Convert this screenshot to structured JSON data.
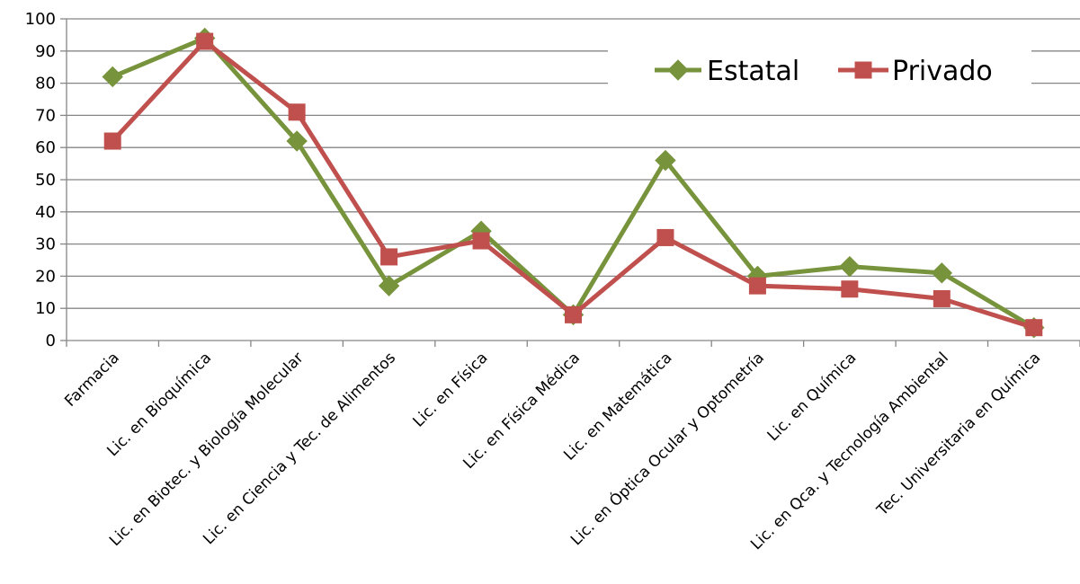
{
  "chart_data": {
    "type": "line",
    "categories": [
      "Farmacia",
      "Lic. en Bioquímica",
      "Lic. en Biotec. y Biología Molecular",
      "Lic. en Ciencia y Tec. de Alimentos",
      "Lic. en Física",
      "Lic. en Física Médica",
      "Lic. en Matemática",
      "Lic. en Óptica Ocular y Optometría",
      "Lic. en Química",
      "Lic. en Qca. y Tecnología Ambiental",
      "Tec. Universitaria en Química"
    ],
    "series": [
      {
        "name": "Estatal",
        "color": "#77933C",
        "marker": "diamond",
        "values": [
          82,
          94,
          62,
          17,
          34,
          8,
          56,
          20,
          23,
          21,
          4
        ]
      },
      {
        "name": "Privado",
        "color": "#C0504D",
        "marker": "square",
        "values": [
          62,
          93,
          71,
          26,
          31,
          8,
          32,
          17,
          16,
          13,
          4
        ]
      }
    ],
    "ylim": [
      0,
      100
    ],
    "yticks": [
      0,
      10,
      20,
      30,
      40,
      50,
      60,
      70,
      80,
      90,
      100
    ],
    "grid": true,
    "legend_position": "top-right"
  }
}
